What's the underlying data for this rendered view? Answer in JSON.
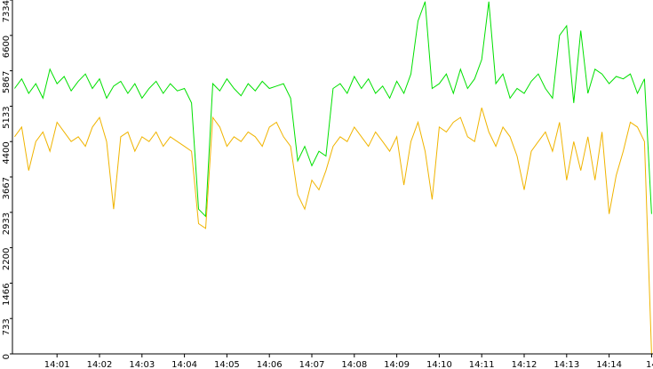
{
  "chart_data": {
    "type": "line",
    "x": [
      0,
      10,
      20,
      30,
      40,
      50,
      60,
      70,
      80,
      90,
      100,
      110,
      120,
      130,
      140,
      150,
      160,
      170,
      180,
      190,
      200,
      210,
      220,
      230,
      240,
      250,
      260,
      270,
      280,
      290,
      300,
      310,
      320,
      330,
      340,
      350,
      360,
      370,
      380,
      390,
      400,
      410,
      420,
      430,
      440,
      450,
      460,
      470,
      480,
      490,
      500,
      510,
      520,
      530,
      540,
      550,
      560,
      570,
      580,
      590,
      600,
      610,
      620,
      630,
      640,
      650,
      660,
      670,
      680,
      690,
      700,
      710,
      720,
      730,
      740,
      750,
      760,
      770,
      780,
      790,
      800,
      810,
      820,
      830,
      840,
      850,
      860,
      870,
      880,
      890,
      900
    ],
    "series": [
      {
        "color": "#00e000",
        "values": [
          5500,
          5700,
          5400,
          5600,
          5300,
          5900,
          5600,
          5750,
          5450,
          5650,
          5800,
          5500,
          5700,
          5300,
          5550,
          5650,
          5400,
          5600,
          5300,
          5500,
          5650,
          5400,
          5600,
          5450,
          5500,
          5200,
          3000,
          2850,
          5600,
          5450,
          5700,
          5500,
          5350,
          5600,
          5450,
          5650,
          5500,
          5550,
          5600,
          5300,
          4000,
          4300,
          3900,
          4200,
          4100,
          5500,
          5600,
          5400,
          5750,
          5500,
          5700,
          5400,
          5550,
          5300,
          5650,
          5400,
          5800,
          6900,
          7300,
          5500,
          5600,
          5800,
          5400,
          5900,
          5500,
          5700,
          6100,
          7300,
          5600,
          5800,
          5300,
          5500,
          5400,
          5650,
          5800,
          5500,
          5300,
          6600,
          6800,
          5200,
          6700,
          5400,
          5900,
          5800,
          5600,
          5750,
          5700,
          5800,
          5400,
          5700,
          2900
        ]
      },
      {
        "color": "#f0b400",
        "values": [
          4500,
          4700,
          3800,
          4400,
          4600,
          4200,
          4800,
          4600,
          4400,
          4500,
          4300,
          4700,
          4900,
          4400,
          3000,
          4500,
          4600,
          4200,
          4500,
          4400,
          4600,
          4300,
          4500,
          4400,
          4300,
          4200,
          2700,
          2600,
          4900,
          4700,
          4300,
          4500,
          4400,
          4600,
          4500,
          4300,
          4700,
          4800,
          4500,
          4300,
          3300,
          3000,
          3600,
          3400,
          3800,
          4300,
          4500,
          4400,
          4700,
          4500,
          4300,
          4600,
          4400,
          4200,
          4500,
          3500,
          4400,
          4800,
          4200,
          3200,
          4700,
          4600,
          4800,
          4900,
          4500,
          4400,
          5100,
          4600,
          4300,
          4700,
          4500,
          4100,
          3400,
          4200,
          4400,
          4600,
          4200,
          4800,
          3600,
          4400,
          3800,
          4500,
          3600,
          4600,
          2900,
          3700,
          4200,
          4800,
          4700,
          4400,
          0
        ]
      }
    ],
    "xlim": [
      -3,
      902
    ],
    "xticks": [
      {
        "value": 60,
        "label": "14:01"
      },
      {
        "value": 120,
        "label": "14:02"
      },
      {
        "value": 180,
        "label": "14:03"
      },
      {
        "value": 240,
        "label": "14:04"
      },
      {
        "value": 300,
        "label": "14:05"
      },
      {
        "value": 360,
        "label": "14:06"
      },
      {
        "value": 420,
        "label": "14:07"
      },
      {
        "value": 480,
        "label": "14:08"
      },
      {
        "value": 540,
        "label": "14:09"
      },
      {
        "value": 600,
        "label": "14:10"
      },
      {
        "value": 660,
        "label": "14:11"
      },
      {
        "value": 720,
        "label": "14:12"
      },
      {
        "value": 780,
        "label": "14:13"
      },
      {
        "value": 840,
        "label": "14:14"
      },
      {
        "value": 900,
        "label": "14"
      }
    ],
    "ylim": [
      0,
      7334
    ],
    "yticks": [
      0,
      733,
      1466,
      2200,
      2933,
      3667,
      4400,
      5133,
      5867,
      6600,
      7334
    ],
    "grid": false
  }
}
